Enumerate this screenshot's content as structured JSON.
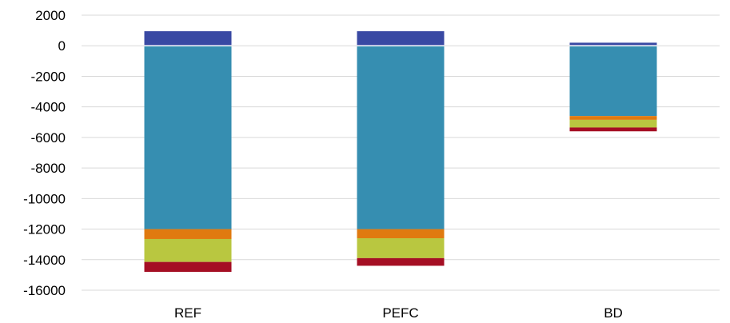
{
  "chart_data": {
    "type": "bar",
    "stacked": true,
    "title": "",
    "xlabel": "",
    "ylabel": "",
    "categories": [
      "REF",
      "PEFC",
      "BD"
    ],
    "ylim": [
      -16000,
      2000
    ],
    "yticks": [
      2000,
      0,
      -2000,
      -4000,
      -6000,
      -8000,
      -10000,
      -12000,
      -14000,
      -16000
    ],
    "grid": true,
    "legend": "none",
    "series": [
      {
        "color": "#3949a3",
        "values": [
          950,
          950,
          200
        ]
      },
      {
        "color": "#368eb1",
        "values": [
          -12000,
          -12000,
          -4600
        ]
      },
      {
        "color": "#e07a10",
        "values": [
          -650,
          -600,
          -250
        ]
      },
      {
        "color": "#b9c740",
        "values": [
          -1500,
          -1300,
          -500
        ]
      },
      {
        "color": "#a50f24",
        "values": [
          -650,
          -500,
          -250
        ]
      }
    ]
  }
}
